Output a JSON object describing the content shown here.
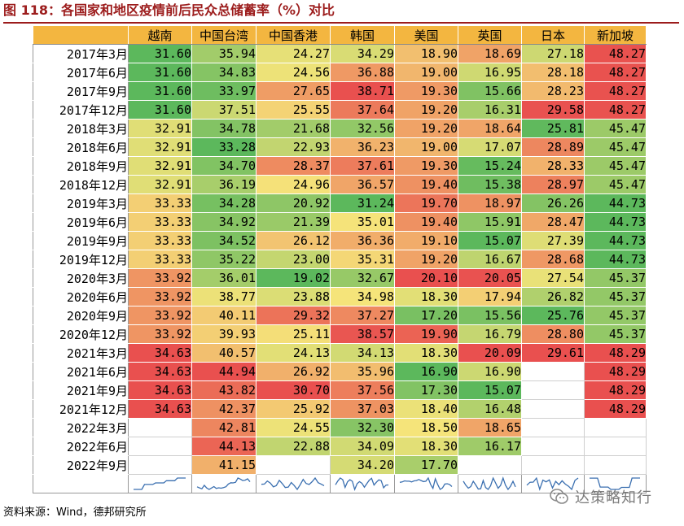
{
  "title": "图 118：各国家和地区疫情前后民众总储蓄率（%）对比",
  "source": "资料来源：Wind，德邦研究所",
  "watermark": "达策略知行",
  "columns": [
    "越南",
    "中国台湾",
    "中国香港",
    "韩国",
    "美国",
    "英国",
    "日本",
    "新加坡"
  ],
  "colors": {
    "header": "#f3b640",
    "title": "#9c1c1c",
    "low": "#5cb85c",
    "mid": "#f5e47a",
    "high": "#e9504f"
  },
  "rows": [
    {
      "label": "2017年3月",
      "values": [
        "31.60",
        "35.94",
        "24.27",
        "34.29",
        "18.90",
        "18.69",
        "27.18",
        "48.27"
      ]
    },
    {
      "label": "2017年6月",
      "values": [
        "31.60",
        "34.83",
        "24.56",
        "36.88",
        "19.00",
        "16.95",
        "28.18",
        "48.27"
      ]
    },
    {
      "label": "2017年9月",
      "values": [
        "31.60",
        "33.97",
        "27.65",
        "38.71",
        "19.30",
        "15.66",
        "28.23",
        "48.27"
      ]
    },
    {
      "label": "2017年12月",
      "values": [
        "31.60",
        "37.51",
        "25.55",
        "37.64",
        "19.20",
        "16.31",
        "29.58",
        "48.27"
      ]
    },
    {
      "label": "2018年3月",
      "values": [
        "32.91",
        "34.78",
        "21.68",
        "32.56",
        "19.20",
        "18.64",
        "25.81",
        "45.47"
      ]
    },
    {
      "label": "2018年6月",
      "values": [
        "32.91",
        "33.28",
        "22.93",
        "36.23",
        "19.00",
        "17.07",
        "28.89",
        "45.47"
      ]
    },
    {
      "label": "2018年9月",
      "values": [
        "32.91",
        "34.70",
        "28.37",
        "37.61",
        "19.30",
        "15.24",
        "28.33",
        "45.47"
      ]
    },
    {
      "label": "2018年12月",
      "values": [
        "32.91",
        "36.19",
        "24.96",
        "36.57",
        "19.40",
        "15.38",
        "28.97",
        "45.47"
      ]
    },
    {
      "label": "2019年3月",
      "values": [
        "33.33",
        "34.28",
        "20.92",
        "31.24",
        "19.70",
        "18.97",
        "26.26",
        "44.73"
      ]
    },
    {
      "label": "2019年6月",
      "values": [
        "33.33",
        "34.92",
        "21.39",
        "35.01",
        "19.40",
        "15.91",
        "28.47",
        "44.73"
      ]
    },
    {
      "label": "2019年9月",
      "values": [
        "33.33",
        "34.52",
        "26.12",
        "36.36",
        "19.10",
        "15.07",
        "27.39",
        "44.73"
      ]
    },
    {
      "label": "2019年12月",
      "values": [
        "33.33",
        "35.22",
        "23.00",
        "35.31",
        "19.20",
        "16.67",
        "28.68",
        "44.73"
      ]
    },
    {
      "label": "2020年3月",
      "values": [
        "33.92",
        "36.01",
        "19.02",
        "32.67",
        "20.10",
        "20.05",
        "27.54",
        "45.37"
      ]
    },
    {
      "label": "2020年6月",
      "values": [
        "33.92",
        "38.77",
        "23.88",
        "34.98",
        "18.30",
        "17.94",
        "26.82",
        "45.37"
      ]
    },
    {
      "label": "2020年9月",
      "values": [
        "33.92",
        "40.11",
        "29.32",
        "37.27",
        "17.20",
        "15.56",
        "25.76",
        "45.37"
      ]
    },
    {
      "label": "2020年12月",
      "values": [
        "33.92",
        "39.93",
        "25.11",
        "38.57",
        "19.90",
        "16.79",
        "28.80",
        "45.37"
      ]
    },
    {
      "label": "2021年3月",
      "values": [
        "34.63",
        "40.57",
        "24.13",
        "34.13",
        "18.30",
        "20.09",
        "29.61",
        "48.29"
      ]
    },
    {
      "label": "2021年6月",
      "values": [
        "34.63",
        "44.94",
        "26.92",
        "35.96",
        "16.90",
        "16.90",
        "",
        "48.29"
      ]
    },
    {
      "label": "2021年9月",
      "values": [
        "34.63",
        "43.82",
        "30.70",
        "37.56",
        "17.30",
        "15.07",
        "",
        "48.29"
      ]
    },
    {
      "label": "2021年12月",
      "values": [
        "34.63",
        "42.37",
        "25.92",
        "37.03",
        "18.40",
        "16.48",
        "",
        "48.29"
      ]
    },
    {
      "label": "2022年3月",
      "values": [
        "",
        "42.81",
        "24.55",
        "32.30",
        "18.50",
        "18.65",
        "",
        ""
      ]
    },
    {
      "label": "2022年6月",
      "values": [
        "",
        "44.13",
        "22.88",
        "34.09",
        "18.30",
        "16.17",
        "",
        ""
      ]
    },
    {
      "label": "2022年9月",
      "values": [
        "",
        "41.15",
        "",
        "34.20",
        "17.70",
        "",
        "",
        ""
      ]
    }
  ]
}
